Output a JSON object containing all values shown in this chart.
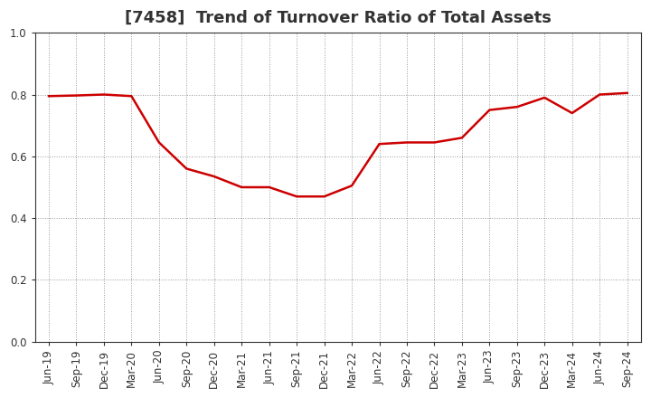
{
  "title": "[7458]  Trend of Turnover Ratio of Total Assets",
  "x_labels": [
    "Jun-19",
    "Sep-19",
    "Dec-19",
    "Mar-20",
    "Jun-20",
    "Sep-20",
    "Dec-20",
    "Mar-21",
    "Jun-21",
    "Sep-21",
    "Dec-21",
    "Mar-22",
    "Jun-22",
    "Sep-22",
    "Dec-22",
    "Mar-23",
    "Jun-23",
    "Sep-23",
    "Dec-23",
    "Mar-24",
    "Jun-24",
    "Sep-24"
  ],
  "values": [
    0.795,
    0.797,
    0.8,
    0.795,
    0.645,
    0.56,
    0.535,
    0.5,
    0.5,
    0.47,
    0.47,
    0.505,
    0.64,
    0.645,
    0.645,
    0.66,
    0.75,
    0.76,
    0.79,
    0.74,
    0.8,
    0.805
  ],
  "line_color": "#cc0000",
  "line_width": 1.8,
  "ylim": [
    0.0,
    1.0
  ],
  "yticks": [
    0.0,
    0.2,
    0.4,
    0.6,
    0.8,
    1.0
  ],
  "background_color": "#ffffff",
  "grid_color": "#999999",
  "title_fontsize": 13,
  "tick_fontsize": 8.5,
  "title_color": "#333333"
}
